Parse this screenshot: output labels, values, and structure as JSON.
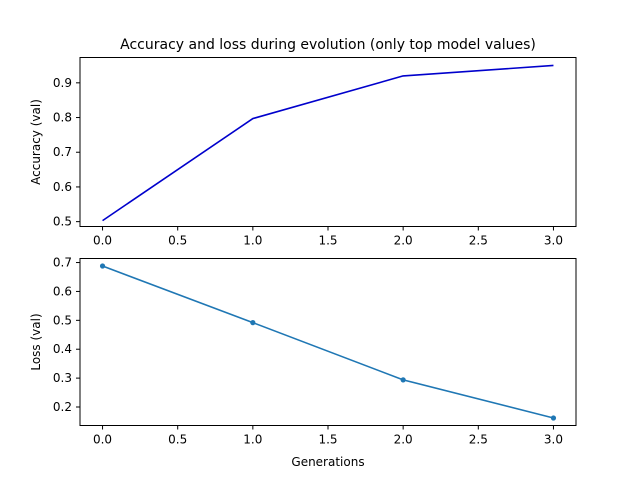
{
  "chart_data": [
    {
      "type": "line",
      "title": "Accuracy and loss during evolution (only top model values)",
      "xlabel": "",
      "ylabel": "Accuracy (val)",
      "x": [
        0,
        1,
        2,
        3
      ],
      "series": [
        {
          "values": [
            0.503,
            0.797,
            0.92,
            0.95
          ],
          "color": "#0000cc",
          "marker": "none"
        }
      ],
      "xlim": [
        -0.15,
        3.15
      ],
      "ylim": [
        0.486,
        0.973
      ],
      "xticks": [
        0.0,
        0.5,
        1.0,
        1.5,
        2.0,
        2.5,
        3.0
      ],
      "xtick_labels": [
        "0.0",
        "0.5",
        "1.0",
        "1.5",
        "2.0",
        "2.5",
        "3.0"
      ],
      "yticks": [
        0.5,
        0.6,
        0.7,
        0.8,
        0.9
      ],
      "ytick_labels": [
        "0.5",
        "0.6",
        "0.7",
        "0.8",
        "0.9"
      ],
      "grid": false
    },
    {
      "type": "line",
      "title": "",
      "xlabel": "Generations",
      "ylabel": "Loss (val)",
      "x": [
        0,
        1,
        2,
        3
      ],
      "series": [
        {
          "values": [
            0.688,
            0.492,
            0.294,
            0.162
          ],
          "color": "#1f77b4",
          "marker": "dot"
        }
      ],
      "xlim": [
        -0.15,
        3.15
      ],
      "ylim": [
        0.136,
        0.714
      ],
      "xticks": [
        0.0,
        0.5,
        1.0,
        1.5,
        2.0,
        2.5,
        3.0
      ],
      "xtick_labels": [
        "0.0",
        "0.5",
        "1.0",
        "1.5",
        "2.0",
        "2.5",
        "3.0"
      ],
      "yticks": [
        0.2,
        0.3,
        0.4,
        0.5,
        0.6,
        0.7
      ],
      "ytick_labels": [
        "0.2",
        "0.3",
        "0.4",
        "0.5",
        "0.6",
        "0.7"
      ],
      "grid": false
    }
  ]
}
